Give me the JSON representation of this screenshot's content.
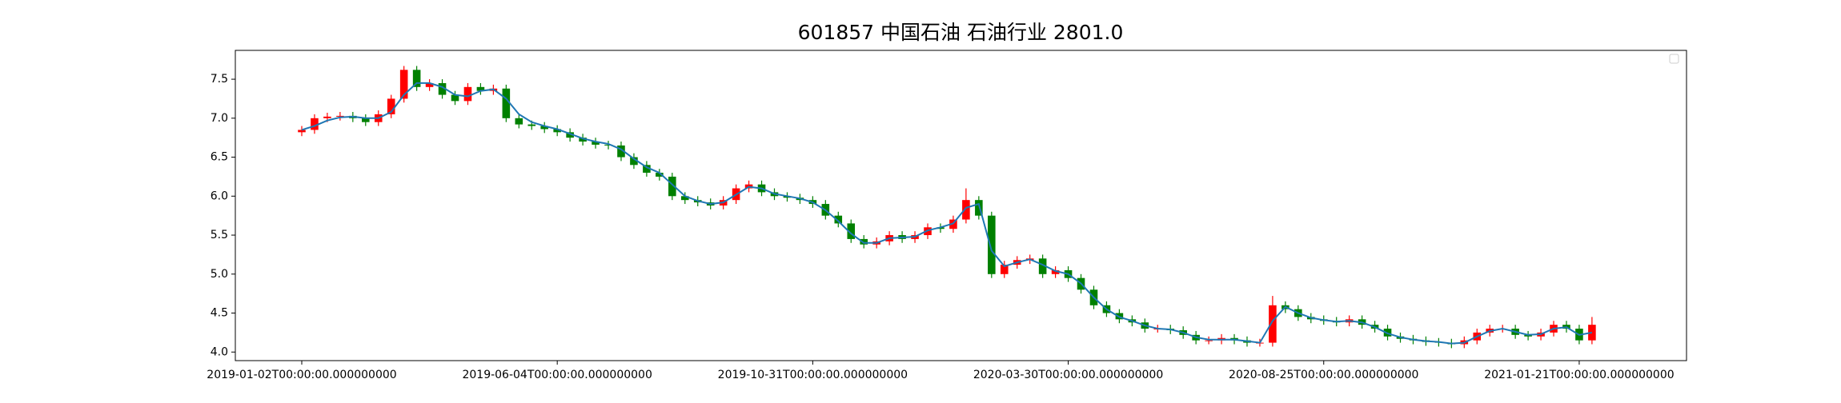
{
  "chart_data": {
    "type": "candlestick",
    "title": "601857 中国石油 石油行业 2801.0",
    "up_color": "#ff0000",
    "down_color": "#008000",
    "x": [
      0,
      5,
      10,
      15,
      20,
      25,
      30,
      35,
      40,
      45,
      50,
      55,
      60,
      65,
      70,
      75,
      80,
      85,
      90,
      95,
      100,
      105,
      110,
      115,
      120,
      125,
      130,
      135,
      140,
      145,
      150,
      155,
      160,
      165,
      170,
      175,
      180,
      185,
      190,
      195,
      200,
      205,
      210,
      215,
      220,
      225,
      230,
      235,
      240,
      245,
      250,
      255,
      260,
      265,
      270,
      275,
      280,
      285,
      290,
      295,
      300,
      305,
      310,
      315,
      320,
      325,
      330,
      335,
      340,
      345,
      350,
      355,
      360,
      365,
      370,
      375,
      380,
      385,
      390,
      395,
      400,
      405,
      410,
      415,
      420,
      425,
      430,
      435,
      440,
      445,
      450,
      455,
      460,
      465,
      470,
      475,
      480,
      485,
      490,
      495,
      500,
      505
    ],
    "open": [
      6.82,
      6.85,
      7.0,
      7.02,
      7.03,
      7.0,
      6.95,
      7.05,
      7.25,
      7.62,
      7.4,
      7.45,
      7.3,
      7.22,
      7.4,
      7.35,
      7.38,
      7.0,
      6.92,
      6.9,
      6.86,
      6.82,
      6.75,
      6.7,
      6.66,
      6.65,
      6.5,
      6.4,
      6.3,
      6.25,
      6.0,
      5.95,
      5.92,
      5.88,
      5.95,
      6.1,
      6.15,
      6.05,
      6.0,
      5.98,
      5.95,
      5.9,
      5.75,
      5.65,
      5.45,
      5.38,
      5.42,
      5.5,
      5.45,
      5.5,
      5.6,
      5.58,
      5.7,
      5.95,
      5.75,
      5.0,
      5.12,
      5.18,
      5.2,
      5.0,
      5.05,
      4.95,
      4.8,
      4.6,
      4.5,
      4.42,
      4.38,
      4.3,
      4.3,
      4.28,
      4.22,
      4.15,
      4.15,
      4.18,
      4.15,
      4.12,
      4.12,
      4.6,
      4.55,
      4.45,
      4.42,
      4.4,
      4.38,
      4.42,
      4.35,
      4.3,
      4.2,
      4.17,
      4.15,
      4.13,
      4.12,
      4.1,
      4.15,
      4.25,
      4.3,
      4.3,
      4.22,
      4.2,
      4.25,
      4.35,
      4.3,
      4.15
    ],
    "high": [
      6.9,
      7.05,
      7.07,
      7.08,
      7.08,
      7.05,
      7.1,
      7.3,
      7.67,
      7.67,
      7.5,
      7.5,
      7.35,
      7.45,
      7.45,
      7.43,
      7.43,
      7.05,
      6.97,
      6.95,
      6.91,
      6.87,
      6.8,
      6.75,
      6.71,
      6.7,
      6.55,
      6.45,
      6.35,
      6.3,
      6.05,
      6.0,
      5.97,
      6.0,
      6.15,
      6.2,
      6.2,
      6.1,
      6.05,
      6.03,
      6.0,
      5.95,
      5.8,
      5.7,
      5.5,
      5.47,
      5.55,
      5.55,
      5.55,
      5.65,
      5.65,
      5.75,
      6.1,
      6.0,
      5.8,
      5.17,
      5.23,
      5.25,
      5.25,
      5.1,
      5.1,
      5.0,
      4.85,
      4.65,
      4.55,
      4.47,
      4.43,
      4.35,
      4.35,
      4.33,
      4.27,
      4.2,
      4.23,
      4.23,
      4.2,
      4.17,
      4.72,
      4.65,
      4.6,
      4.5,
      4.47,
      4.45,
      4.47,
      4.47,
      4.4,
      4.35,
      4.25,
      4.22,
      4.2,
      4.18,
      4.17,
      4.2,
      4.3,
      4.35,
      4.35,
      4.35,
      4.27,
      4.3,
      4.4,
      4.4,
      4.35,
      4.45
    ],
    "low": [
      6.77,
      6.8,
      6.95,
      6.97,
      6.95,
      6.9,
      6.9,
      7.0,
      7.2,
      7.35,
      7.35,
      7.25,
      7.17,
      7.17,
      7.3,
      7.3,
      6.95,
      6.87,
      6.85,
      6.81,
      6.77,
      6.7,
      6.65,
      6.61,
      6.6,
      6.45,
      6.35,
      6.25,
      6.2,
      5.95,
      5.9,
      5.87,
      5.83,
      5.83,
      5.9,
      6.05,
      6.0,
      5.95,
      5.93,
      5.9,
      5.85,
      5.7,
      5.6,
      5.4,
      5.33,
      5.33,
      5.37,
      5.4,
      5.4,
      5.45,
      5.53,
      5.53,
      5.65,
      5.7,
      4.95,
      4.95,
      5.07,
      5.13,
      4.95,
      4.95,
      4.9,
      4.75,
      4.55,
      4.45,
      4.37,
      4.33,
      4.25,
      4.25,
      4.23,
      4.17,
      4.1,
      4.1,
      4.1,
      4.1,
      4.07,
      4.07,
      4.07,
      4.5,
      4.4,
      4.37,
      4.35,
      4.33,
      4.33,
      4.3,
      4.25,
      4.15,
      4.12,
      4.1,
      4.08,
      4.07,
      4.05,
      4.05,
      4.1,
      4.2,
      4.25,
      4.17,
      4.15,
      4.15,
      4.2,
      4.25,
      4.1,
      4.1
    ],
    "close": [
      6.85,
      7.0,
      7.02,
      7.03,
      7.0,
      6.95,
      7.05,
      7.25,
      7.62,
      7.4,
      7.45,
      7.3,
      7.22,
      7.4,
      7.35,
      7.38,
      7.0,
      6.92,
      6.9,
      6.86,
      6.82,
      6.75,
      6.7,
      6.66,
      6.65,
      6.5,
      6.4,
      6.3,
      6.25,
      6.0,
      5.95,
      5.92,
      5.88,
      5.95,
      6.1,
      6.15,
      6.05,
      6.0,
      5.98,
      5.95,
      5.9,
      5.75,
      5.65,
      5.45,
      5.38,
      5.42,
      5.5,
      5.45,
      5.5,
      5.6,
      5.58,
      5.7,
      5.95,
      5.75,
      5.0,
      5.12,
      5.18,
      5.2,
      5.0,
      5.05,
      4.95,
      4.8,
      4.6,
      4.5,
      4.42,
      4.38,
      4.3,
      4.3,
      4.28,
      4.22,
      4.15,
      4.15,
      4.18,
      4.15,
      4.12,
      4.12,
      4.6,
      4.55,
      4.45,
      4.42,
      4.4,
      4.38,
      4.42,
      4.35,
      4.3,
      4.2,
      4.17,
      4.15,
      4.13,
      4.12,
      4.1,
      4.15,
      4.25,
      4.3,
      4.3,
      4.22,
      4.2,
      4.25,
      4.35,
      4.3,
      4.15,
      4.35
    ],
    "lines": [
      {
        "color": "#1f77b4",
        "values": [
          6.85,
          6.9,
          6.97,
          7.01,
          7.02,
          7.0,
          7.0,
          7.08,
          7.3,
          7.45,
          7.45,
          7.4,
          7.3,
          7.28,
          7.35,
          7.37,
          7.25,
          7.05,
          6.95,
          6.9,
          6.86,
          6.8,
          6.74,
          6.7,
          6.67,
          6.6,
          6.48,
          6.37,
          6.3,
          6.15,
          6.0,
          5.94,
          5.9,
          5.92,
          6.02,
          6.12,
          6.1,
          6.03,
          6.0,
          5.97,
          5.92,
          5.82,
          5.68,
          5.52,
          5.4,
          5.4,
          5.46,
          5.47,
          5.48,
          5.56,
          5.6,
          5.65,
          5.85,
          5.9,
          5.3,
          5.1,
          5.15,
          5.19,
          5.12,
          5.04,
          5.0,
          4.88,
          4.7,
          4.55,
          4.45,
          4.4,
          4.34,
          4.3,
          4.29,
          4.25,
          4.19,
          4.16,
          4.16,
          4.16,
          4.14,
          4.12,
          4.4,
          4.58,
          4.5,
          4.44,
          4.41,
          4.39,
          4.4,
          4.38,
          4.32,
          4.24,
          4.19,
          4.16,
          4.14,
          4.13,
          4.11,
          4.12,
          4.2,
          4.27,
          4.3,
          4.26,
          4.22,
          4.23,
          4.3,
          4.32,
          4.22,
          4.25
        ]
      }
    ],
    "xlim": [
      -26,
      542
    ],
    "xticks": [
      {
        "value": 0,
        "label": "2019-01-02T00:00:00.000000000"
      },
      {
        "value": 100,
        "label": "2019-06-04T00:00:00.000000000"
      },
      {
        "value": 200,
        "label": "2019-10-31T00:00:00.000000000"
      },
      {
        "value": 300,
        "label": "2020-03-30T00:00:00.000000000"
      },
      {
        "value": 400,
        "label": "2020-08-25T00:00:00.000000000"
      },
      {
        "value": 500,
        "label": "2021-01-21T00:00:00.000000000"
      }
    ],
    "ylim": [
      3.89,
      7.87
    ],
    "yticks": [
      {
        "value": 4,
        "label": "4.0"
      },
      4.5,
      {
        "value": 5,
        "label": "5.0"
      },
      5.5,
      {
        "value": 6,
        "label": "6.0"
      },
      6.5,
      {
        "value": 7,
        "label": "7.0"
      },
      7.5
    ]
  }
}
